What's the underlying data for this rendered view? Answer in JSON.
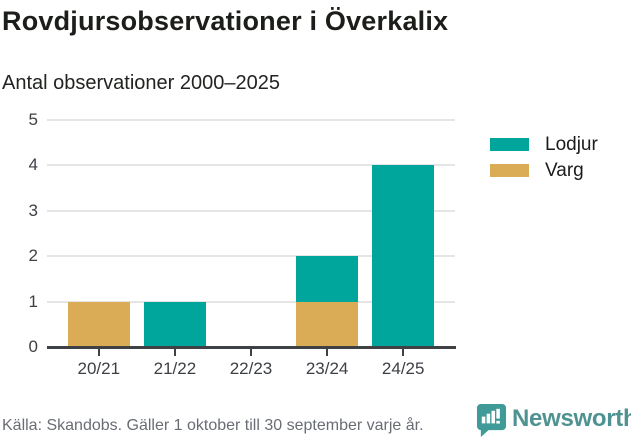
{
  "header": {
    "title": "Rovdjursobservationer i Överkalix",
    "subtitle": "Antal observationer 2000–2025"
  },
  "chart_data": {
    "type": "bar",
    "stacked": true,
    "title": "Rovdjursobservationer i Överkalix",
    "subtitle": "Antal observationer 2000–2025",
    "categories": [
      "20/21",
      "21/22",
      "22/23",
      "23/24",
      "24/25"
    ],
    "series": [
      {
        "name": "Lodjur",
        "color": "#00a69b",
        "values": [
          0,
          1,
          0,
          1,
          4
        ]
      },
      {
        "name": "Varg",
        "color": "#d9ac55",
        "values": [
          1,
          0,
          0,
          1,
          0
        ]
      }
    ],
    "stack_order_bottom_to_top": [
      "Varg",
      "Lodjur"
    ],
    "totals": [
      1,
      1,
      0,
      2,
      4
    ],
    "xlabel": "",
    "ylabel": "",
    "ylim": [
      0,
      5
    ],
    "yticks": [
      0,
      1,
      2,
      3,
      4,
      5
    ],
    "grid": true,
    "legend_position": "right"
  },
  "footer": {
    "source": "Källa: Skandobs. Gäller 1 oktober till 30 september varje år.",
    "brand": "Newsworthy",
    "brand_icon": "newsworthy-speech-bubble-bar-chart-icon"
  },
  "colors": {
    "lodjur": "#00a69b",
    "varg": "#d9ac55",
    "axis": "#3f4245",
    "gridline": "#e5e5e5",
    "tick_label": "#3d4045",
    "title_text": "#1c1e19",
    "source_text": "#696d74",
    "brand_teal": "#4e9391",
    "background": "#ffffff"
  }
}
